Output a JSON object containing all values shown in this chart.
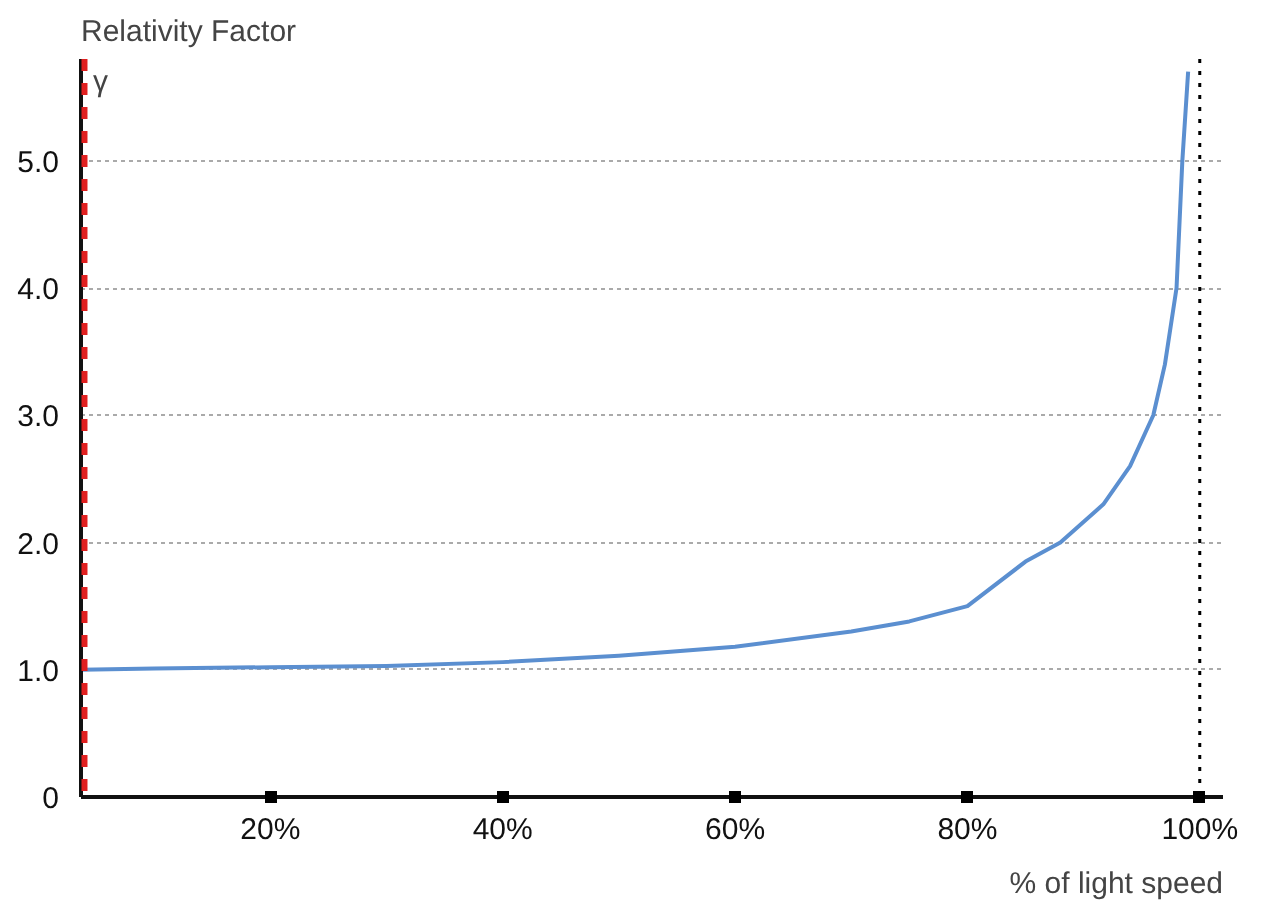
{
  "chart_data": {
    "type": "line",
    "title": "Relativity Factor",
    "ylabel": "γ",
    "xlabel": "% of light speed",
    "x": [
      3.7,
      10,
      20,
      30,
      40,
      50,
      60,
      70,
      75,
      80,
      85,
      88,
      91.7,
      94,
      96,
      97,
      98,
      98.5,
      99
    ],
    "series": [
      {
        "color": "#5b8fd0",
        "values": [
          1.0,
          1.01,
          1.02,
          1.03,
          1.06,
          1.11,
          1.18,
          1.3,
          1.38,
          1.5,
          1.85,
          2.0,
          2.3,
          2.6,
          3.0,
          3.4,
          4.0,
          5.0,
          5.7
        ]
      }
    ],
    "xlim": [
      3.7,
      102
    ],
    "ylim": [
      0,
      5.8
    ],
    "xticks": [
      {
        "value": 20,
        "label": "20%"
      },
      {
        "value": 40,
        "label": "40%"
      },
      {
        "value": 60,
        "label": "60%"
      },
      {
        "value": 80,
        "label": "80%"
      },
      {
        "value": 100,
        "label": "100%"
      }
    ],
    "yticks": [
      0,
      {
        "value": 1,
        "label": "1.0"
      },
      {
        "value": 2,
        "label": "2.0"
      },
      {
        "value": 3,
        "label": "3.0"
      },
      {
        "value": 4,
        "label": "4.0"
      },
      {
        "value": 5,
        "label": "5.0"
      }
    ],
    "grid": "y",
    "marker": "none",
    "line_style": "solid",
    "ref_lines": [
      {
        "axis": "x",
        "value": 4,
        "color": "#e02020",
        "line_style": "dashed"
      },
      {
        "axis": "x",
        "value": 100,
        "color": "#000000",
        "line_style": "dotted"
      }
    ]
  }
}
